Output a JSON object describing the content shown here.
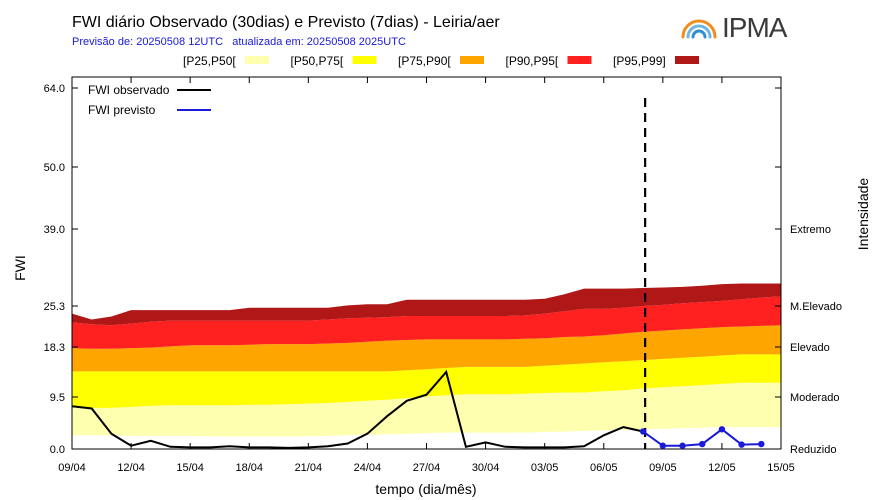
{
  "chart_data": {
    "type": "area",
    "title": "FWI diário Observado (30dias) e Previsto (7dias) - Leiria/aer",
    "subtitle": "Previsão de: 20250508 12UTC   atualizada em: 20250508 2025UTC",
    "xlabel": "tempo (dia/mês)",
    "ylabel": "FWI",
    "ylabel_right": "Intensidade",
    "y_ticks": [
      "0.0",
      "9.5",
      "18.3",
      "25.3",
      "39.0",
      "50.0",
      "64.0"
    ],
    "y_tick_values": [
      0,
      9.5,
      18.3,
      25.3,
      39.0,
      50.0,
      64.0
    ],
    "x_tick_labels": [
      "09/04",
      "12/04",
      "15/04",
      "18/04",
      "21/04",
      "24/04",
      "27/04",
      "30/04",
      "03/05",
      "06/05",
      "09/05",
      "12/05",
      "15/05"
    ],
    "x_tick_index": [
      0,
      3,
      6,
      9,
      12,
      15,
      18,
      21,
      24,
      27,
      30,
      33,
      36
    ],
    "intensity_labels": [
      {
        "text": "Reduzido",
        "y": 0
      },
      {
        "text": "Moderado",
        "y": 9.5
      },
      {
        "text": "Elevado",
        "y": 18.3
      },
      {
        "text": "M.Elevado",
        "y": 25.3
      },
      {
        "text": "Extremo",
        "y": 39.0
      }
    ],
    "forecast_start_index": 29,
    "band_legend": [
      {
        "label": "[P25,P50[",
        "color": "#ffffb0"
      },
      {
        "label": "[P50,P75[",
        "color": "#ffff00"
      },
      {
        "label": "[P75,P90[",
        "color": "#ffa500"
      },
      {
        "label": "[P90,P95[",
        "color": "#ff2020"
      },
      {
        "label": "[P95,P99]",
        "color": "#b01818"
      }
    ],
    "percentiles": {
      "p25": [
        2.5,
        2.5,
        2.5,
        2.4,
        2.4,
        2.4,
        2.4,
        2.3,
        2.3,
        2.3,
        2.3,
        2.3,
        2.3,
        2.4,
        2.5,
        2.6,
        2.7,
        2.8,
        2.9,
        3.0,
        3.0,
        3.0,
        3.0,
        3.0,
        3.1,
        3.2,
        3.3,
        3.4,
        3.5,
        3.6,
        3.7,
        3.8,
        3.9,
        4.0,
        4.0,
        4.0,
        4.0
      ],
      "p50": [
        7.6,
        7.5,
        7.5,
        7.7,
        7.9,
        8.0,
        8.0,
        8.0,
        8.0,
        8.1,
        8.1,
        8.2,
        8.3,
        8.4,
        8.6,
        8.8,
        9.0,
        9.3,
        9.6,
        9.8,
        10.0,
        10.0,
        10.0,
        10.1,
        10.2,
        10.3,
        10.3,
        10.5,
        10.7,
        11.0,
        11.2,
        11.4,
        11.6,
        11.8,
        12.0,
        12.0,
        12.0
      ],
      "p75": [
        14.0,
        14.0,
        14.0,
        14.0,
        14.0,
        14.0,
        14.0,
        14.0,
        14.0,
        14.0,
        14.0,
        14.0,
        14.0,
        14.0,
        14.0,
        14.0,
        14.0,
        14.2,
        14.4,
        14.6,
        14.8,
        14.8,
        14.8,
        14.8,
        15.0,
        15.2,
        15.4,
        15.6,
        15.8,
        16.0,
        16.2,
        16.4,
        16.6,
        16.8,
        17.0,
        17.0,
        17.0
      ],
      "p90": [
        18.1,
        18.0,
        18.0,
        18.1,
        18.2,
        18.4,
        18.6,
        18.6,
        18.6,
        18.7,
        18.8,
        18.8,
        18.8,
        18.9,
        19.0,
        19.2,
        19.4,
        19.5,
        19.6,
        19.6,
        19.6,
        19.6,
        19.6,
        19.7,
        19.8,
        20.0,
        20.1,
        20.3,
        20.6,
        20.9,
        21.1,
        21.3,
        21.5,
        21.7,
        21.8,
        21.9,
        22.0
      ],
      "p95": [
        22.5,
        22.2,
        22.0,
        22.3,
        22.6,
        22.8,
        22.8,
        22.8,
        22.8,
        22.8,
        22.8,
        22.8,
        22.8,
        23.0,
        23.2,
        23.3,
        23.4,
        23.6,
        23.6,
        23.6,
        23.6,
        23.6,
        23.6,
        23.7,
        24.0,
        24.4,
        24.8,
        24.8,
        25.0,
        25.3,
        25.5,
        25.8,
        26.0,
        26.2,
        26.5,
        26.8,
        27.0
      ],
      "p99": [
        24.0,
        23.0,
        23.5,
        24.6,
        24.6,
        24.6,
        24.6,
        24.6,
        24.6,
        25.0,
        25.0,
        25.0,
        25.0,
        25.0,
        25.4,
        25.6,
        25.6,
        26.4,
        26.4,
        26.4,
        26.4,
        26.4,
        26.4,
        26.4,
        26.6,
        27.4,
        28.4,
        28.4,
        28.4,
        28.5,
        28.6,
        28.7,
        28.9,
        29.2,
        29.3,
        29.3,
        29.3
      ]
    },
    "series": [
      {
        "name": "FWI observado",
        "color": "#000000",
        "start_index": 0,
        "values": [
          7.8,
          7.4,
          2.8,
          0.6,
          1.5,
          0.4,
          0.3,
          0.3,
          0.5,
          0.3,
          0.3,
          0.2,
          0.3,
          0.5,
          1.0,
          2.8,
          6.0,
          8.8,
          9.9,
          13.9,
          0.4,
          1.2,
          0.4,
          0.3,
          0.3,
          0.3,
          0.5,
          2.5,
          4.0,
          3.2
        ]
      },
      {
        "name": "FWI previsto",
        "color": "#1a1ad9",
        "start_index": 29,
        "values": [
          3.2,
          0.6,
          0.6,
          0.9,
          3.6,
          0.8,
          0.9
        ]
      }
    ]
  },
  "logo": {
    "text": "IPMA"
  }
}
